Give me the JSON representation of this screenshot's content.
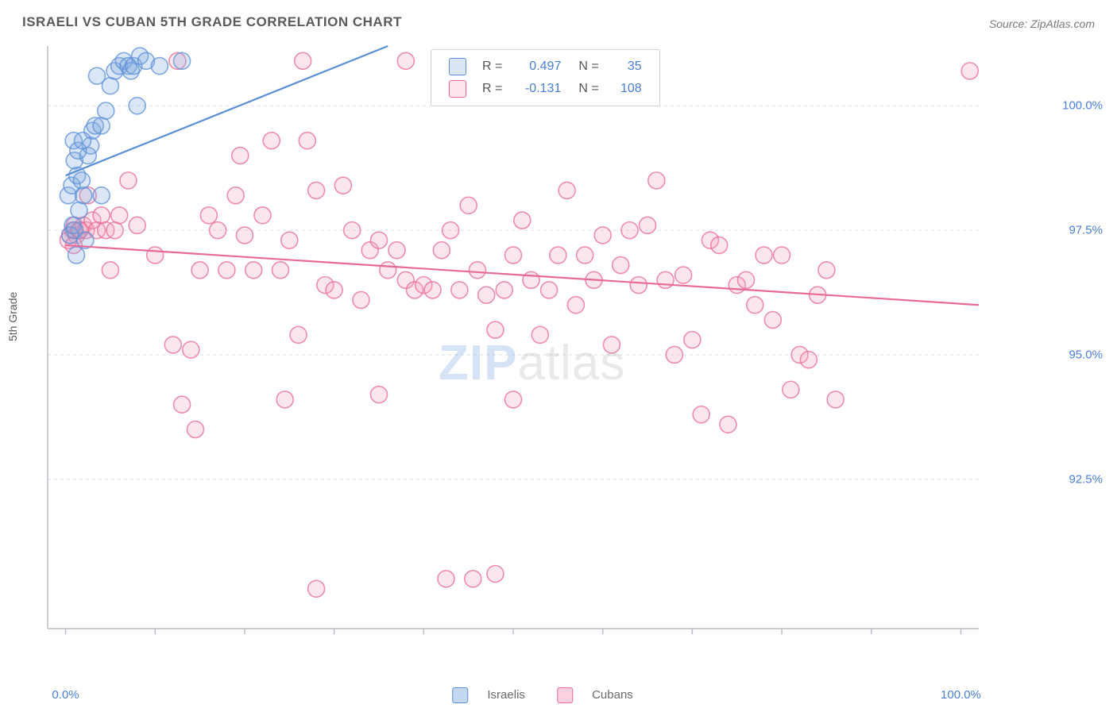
{
  "title": "ISRAELI VS CUBAN 5TH GRADE CORRELATION CHART",
  "source_label": "Source: ZipAtlas.com",
  "ylabel": "5th Grade",
  "watermark": {
    "part1": "ZIP",
    "part2": "atlas"
  },
  "chart": {
    "type": "scatter",
    "background_color": "#ffffff",
    "grid_color": "#d9dde3",
    "axis_color": "#b8bec7",
    "tick_label_color": "#4a7fd6",
    "xlim": [
      -2,
      102
    ],
    "ylim": [
      89.5,
      101.2
    ],
    "xtick_labels": [
      {
        "x": 0,
        "label": "0.0%"
      },
      {
        "x": 100,
        "label": "100.0%"
      }
    ],
    "xtick_positions": [
      0,
      10,
      20,
      30,
      40,
      50,
      60,
      70,
      80,
      90,
      100
    ],
    "ytick_labels": [
      {
        "y": 92.5,
        "label": "92.5%"
      },
      {
        "y": 95.0,
        "label": "95.0%"
      },
      {
        "y": 97.5,
        "label": "97.5%"
      },
      {
        "y": 100.0,
        "label": "100.0%"
      }
    ],
    "marker_radius": 10.5,
    "marker_stroke_width": 1.6,
    "marker_fill_opacity": 0.28,
    "trend_line_width": 2.2,
    "series": [
      {
        "name": "Israelis",
        "color_stroke": "#5a8fd8",
        "color_fill": "#7fa8e0",
        "trend": {
          "x1": 0,
          "y1": 98.6,
          "x2": 36,
          "y2": 101.2
        },
        "stats": {
          "R": "0.497",
          "N": "35"
        },
        "points": [
          [
            0.5,
            97.4
          ],
          [
            0.8,
            97.6
          ],
          [
            1.0,
            97.5
          ],
          [
            1.2,
            97.0
          ],
          [
            1.5,
            97.9
          ],
          [
            0.3,
            98.2
          ],
          [
            0.7,
            98.4
          ],
          [
            1.3,
            98.6
          ],
          [
            1.8,
            98.5
          ],
          [
            1.0,
            98.9
          ],
          [
            2.0,
            98.2
          ],
          [
            2.5,
            99.0
          ],
          [
            2.8,
            99.2
          ],
          [
            3.0,
            99.5
          ],
          [
            3.3,
            99.6
          ],
          [
            0.9,
            99.3
          ],
          [
            1.4,
            99.1
          ],
          [
            1.9,
            99.3
          ],
          [
            4.0,
            99.6
          ],
          [
            4.5,
            99.9
          ],
          [
            5.0,
            100.4
          ],
          [
            5.5,
            100.7
          ],
          [
            6.0,
            100.8
          ],
          [
            6.5,
            100.9
          ],
          [
            7.0,
            100.8
          ],
          [
            7.3,
            100.7
          ],
          [
            7.6,
            100.8
          ],
          [
            8.0,
            100.0
          ],
          [
            8.3,
            101.0
          ],
          [
            9.0,
            100.9
          ],
          [
            10.5,
            100.8
          ],
          [
            13.0,
            100.9
          ],
          [
            2.2,
            97.3
          ],
          [
            4.0,
            98.2
          ],
          [
            3.5,
            100.6
          ]
        ]
      },
      {
        "name": "Cubans",
        "color_stroke": "#e86a94",
        "color_fill": "#f4a6bf",
        "trend": {
          "x1": 0,
          "y1": 97.2,
          "x2": 102,
          "y2": 96.0
        },
        "stats": {
          "R": "-0.131",
          "N": "108"
        },
        "points": [
          [
            0.5,
            97.4
          ],
          [
            0.8,
            97.5
          ],
          [
            1.0,
            97.6
          ],
          [
            1.2,
            97.4
          ],
          [
            1.5,
            97.5
          ],
          [
            0.3,
            97.3
          ],
          [
            0.9,
            97.2
          ],
          [
            1.6,
            97.5
          ],
          [
            2.0,
            97.6
          ],
          [
            2.3,
            97.5
          ],
          [
            2.5,
            98.2
          ],
          [
            3.0,
            97.7
          ],
          [
            3.5,
            97.5
          ],
          [
            4.0,
            97.8
          ],
          [
            4.5,
            97.5
          ],
          [
            5.0,
            96.7
          ],
          [
            5.5,
            97.5
          ],
          [
            6.0,
            97.8
          ],
          [
            7.0,
            98.5
          ],
          [
            8.0,
            97.6
          ],
          [
            10.0,
            97.0
          ],
          [
            12.0,
            95.2
          ],
          [
            13.0,
            94.0
          ],
          [
            14.0,
            95.1
          ],
          [
            15.0,
            96.7
          ],
          [
            16.0,
            97.8
          ],
          [
            17.0,
            97.5
          ],
          [
            18.0,
            96.7
          ],
          [
            19.0,
            98.2
          ],
          [
            20.0,
            97.4
          ],
          [
            21.0,
            96.7
          ],
          [
            22.0,
            97.8
          ],
          [
            23.0,
            99.3
          ],
          [
            24.0,
            96.7
          ],
          [
            25.0,
            97.3
          ],
          [
            26.0,
            95.4
          ],
          [
            27.0,
            99.3
          ],
          [
            26.5,
            100.9
          ],
          [
            28.0,
            98.3
          ],
          [
            29.0,
            96.4
          ],
          [
            30.0,
            96.3
          ],
          [
            31.0,
            98.4
          ],
          [
            32.0,
            97.5
          ],
          [
            33.0,
            96.1
          ],
          [
            34.0,
            97.1
          ],
          [
            35.0,
            97.3
          ],
          [
            36.0,
            96.7
          ],
          [
            37.0,
            97.1
          ],
          [
            38.0,
            96.5
          ],
          [
            39.0,
            96.3
          ],
          [
            40.0,
            96.4
          ],
          [
            41.0,
            96.3
          ],
          [
            42.0,
            97.1
          ],
          [
            43.0,
            97.5
          ],
          [
            44.0,
            96.3
          ],
          [
            45.0,
            98.0
          ],
          [
            45.5,
            90.5
          ],
          [
            46.0,
            96.7
          ],
          [
            47.0,
            96.2
          ],
          [
            48.0,
            95.5
          ],
          [
            49.0,
            96.3
          ],
          [
            50.0,
            97.0
          ],
          [
            51.0,
            97.7
          ],
          [
            52.0,
            96.5
          ],
          [
            53.0,
            95.4
          ],
          [
            54.0,
            96.3
          ],
          [
            55.0,
            97.0
          ],
          [
            56.0,
            98.3
          ],
          [
            57.0,
            96.0
          ],
          [
            58.0,
            97.0
          ],
          [
            59.0,
            96.5
          ],
          [
            60.0,
            97.4
          ],
          [
            61.0,
            95.2
          ],
          [
            62.0,
            96.8
          ],
          [
            63.0,
            97.5
          ],
          [
            64.0,
            96.4
          ],
          [
            65.0,
            97.6
          ],
          [
            66.0,
            98.5
          ],
          [
            67.0,
            96.5
          ],
          [
            68.0,
            95.0
          ],
          [
            69.0,
            96.6
          ],
          [
            70.0,
            95.3
          ],
          [
            71.0,
            93.8
          ],
          [
            72.0,
            97.3
          ],
          [
            73.0,
            97.2
          ],
          [
            74.0,
            93.6
          ],
          [
            75.0,
            96.4
          ],
          [
            76.0,
            96.5
          ],
          [
            77.0,
            96.0
          ],
          [
            78.0,
            97.0
          ],
          [
            79.0,
            95.7
          ],
          [
            80.0,
            97.0
          ],
          [
            81.0,
            94.3
          ],
          [
            82.0,
            95.0
          ],
          [
            83.0,
            94.9
          ],
          [
            84.0,
            96.2
          ],
          [
            85.0,
            96.7
          ],
          [
            86.0,
            94.1
          ],
          [
            101.0,
            100.7
          ],
          [
            12.5,
            100.9
          ],
          [
            38.0,
            100.9
          ],
          [
            28.0,
            90.3
          ],
          [
            42.5,
            90.5
          ],
          [
            48.0,
            90.6
          ],
          [
            24.5,
            94.1
          ],
          [
            14.5,
            93.5
          ],
          [
            35.0,
            94.2
          ],
          [
            50.0,
            94.1
          ],
          [
            19.5,
            99.0
          ]
        ]
      }
    ]
  },
  "legend_stats_labels": {
    "R": "R =",
    "N": "N ="
  },
  "bottom_legend": [
    {
      "label": "Israelis",
      "stroke": "#5a8fd8",
      "fill": "#c5d8f2"
    },
    {
      "label": "Cubans",
      "stroke": "#e86a94",
      "fill": "#fad2e0"
    }
  ]
}
